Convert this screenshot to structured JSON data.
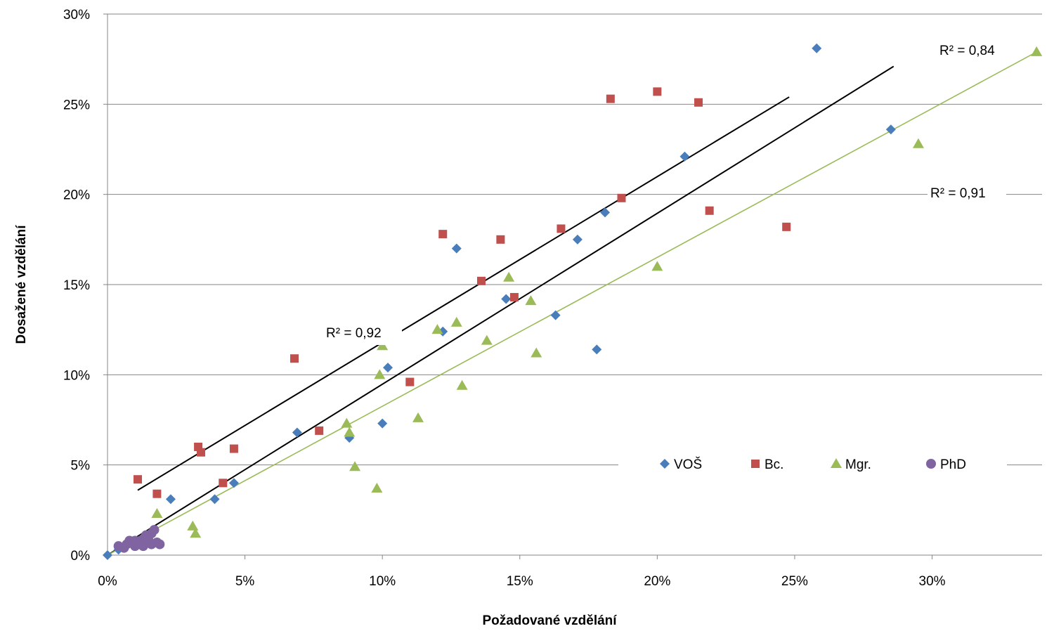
{
  "chart_data": {
    "type": "scatter",
    "xlabel": "Požadované vzdělání",
    "ylabel": "Dosažené vzdělání",
    "xlim": [
      0,
      0.34
    ],
    "ylim": [
      0,
      0.3
    ],
    "x_ticks": [
      {
        "value": 0,
        "label": "0%"
      },
      {
        "value": 0.05,
        "label": "5%"
      },
      {
        "value": 0.1,
        "label": "10%"
      },
      {
        "value": 0.15,
        "label": "15%"
      },
      {
        "value": 0.2,
        "label": "20%"
      },
      {
        "value": 0.25,
        "label": "25%"
      },
      {
        "value": 0.3,
        "label": "30%"
      }
    ],
    "y_ticks": [
      {
        "value": 0,
        "label": "0%"
      },
      {
        "value": 0.05,
        "label": "5%"
      },
      {
        "value": 0.1,
        "label": "10%"
      },
      {
        "value": 0.15,
        "label": "15%"
      },
      {
        "value": 0.2,
        "label": "20%"
      },
      {
        "value": 0.25,
        "label": "25%"
      },
      {
        "value": 0.3,
        "label": "30%"
      }
    ],
    "grid": "horizontal",
    "legend_position": "bottom-right",
    "series": [
      {
        "name": "VOŠ",
        "marker": "diamond",
        "color": "#4a7ebb",
        "points": [
          [
            0,
            0
          ],
          [
            0.004,
            0.003
          ],
          [
            0.023,
            0.031
          ],
          [
            0.039,
            0.031
          ],
          [
            0.046,
            0.04
          ],
          [
            0.069,
            0.068
          ],
          [
            0.088,
            0.065
          ],
          [
            0.1,
            0.073
          ],
          [
            0.102,
            0.104
          ],
          [
            0.122,
            0.124
          ],
          [
            0.127,
            0.17
          ],
          [
            0.145,
            0.142
          ],
          [
            0.163,
            0.133
          ],
          [
            0.171,
            0.175
          ],
          [
            0.178,
            0.114
          ],
          [
            0.181,
            0.19
          ],
          [
            0.21,
            0.221
          ],
          [
            0.258,
            0.281
          ],
          [
            0.285,
            0.236
          ]
        ]
      },
      {
        "name": "Bc.",
        "marker": "square",
        "color": "#c0504d",
        "points": [
          [
            0.011,
            0.042
          ],
          [
            0.018,
            0.034
          ],
          [
            0.033,
            0.06
          ],
          [
            0.034,
            0.057
          ],
          [
            0.042,
            0.04
          ],
          [
            0.046,
            0.059
          ],
          [
            0.068,
            0.109
          ],
          [
            0.077,
            0.069
          ],
          [
            0.11,
            0.096
          ],
          [
            0.122,
            0.178
          ],
          [
            0.136,
            0.152
          ],
          [
            0.143,
            0.175
          ],
          [
            0.148,
            0.143
          ],
          [
            0.165,
            0.181
          ],
          [
            0.183,
            0.253
          ],
          [
            0.187,
            0.198
          ],
          [
            0.2,
            0.257
          ],
          [
            0.215,
            0.251
          ],
          [
            0.219,
            0.191
          ],
          [
            0.247,
            0.182
          ]
        ]
      },
      {
        "name": "Mgr.",
        "marker": "triangle",
        "color": "#9bbb59",
        "points": [
          [
            0.018,
            0.023
          ],
          [
            0.031,
            0.016
          ],
          [
            0.032,
            0.012
          ],
          [
            0.087,
            0.073
          ],
          [
            0.088,
            0.068
          ],
          [
            0.09,
            0.049
          ],
          [
            0.098,
            0.037
          ],
          [
            0.099,
            0.1
          ],
          [
            0.1,
            0.116
          ],
          [
            0.113,
            0.076
          ],
          [
            0.12,
            0.125
          ],
          [
            0.127,
            0.129
          ],
          [
            0.129,
            0.094
          ],
          [
            0.138,
            0.119
          ],
          [
            0.146,
            0.154
          ],
          [
            0.154,
            0.141
          ],
          [
            0.156,
            0.112
          ],
          [
            0.2,
            0.16
          ],
          [
            0.295,
            0.228
          ],
          [
            0.338,
            0.279
          ]
        ]
      },
      {
        "name": "PhD",
        "marker": "circle",
        "color": "#8064a2",
        "points": [
          [
            0.004,
            0.005
          ],
          [
            0.006,
            0.004
          ],
          [
            0.007,
            0.006
          ],
          [
            0.008,
            0.008
          ],
          [
            0.009,
            0.007
          ],
          [
            0.01,
            0.008
          ],
          [
            0.01,
            0.005
          ],
          [
            0.011,
            0.006
          ],
          [
            0.012,
            0.008
          ],
          [
            0.012,
            0.006
          ],
          [
            0.013,
            0.009
          ],
          [
            0.013,
            0.005
          ],
          [
            0.014,
            0.011
          ],
          [
            0.014,
            0.007
          ],
          [
            0.015,
            0.008
          ],
          [
            0.016,
            0.012
          ],
          [
            0.016,
            0.006
          ],
          [
            0.017,
            0.014
          ],
          [
            0.018,
            0.007
          ],
          [
            0.019,
            0.006
          ]
        ]
      }
    ],
    "trendlines": [
      {
        "label": "R² = 0,92",
        "color": "#000000",
        "from": [
          0.011,
          0.036
        ],
        "to": [
          0.248,
          0.254
        ]
      },
      {
        "label": "R² = 0,91",
        "color": "#000000",
        "from": [
          0.0,
          0.0
        ],
        "to": [
          0.286,
          0.271
        ]
      },
      {
        "label": "R² = 0,84",
        "color": "#9bbb59",
        "from": [
          0.0,
          0.0
        ],
        "to": [
          0.338,
          0.279
        ]
      }
    ]
  }
}
